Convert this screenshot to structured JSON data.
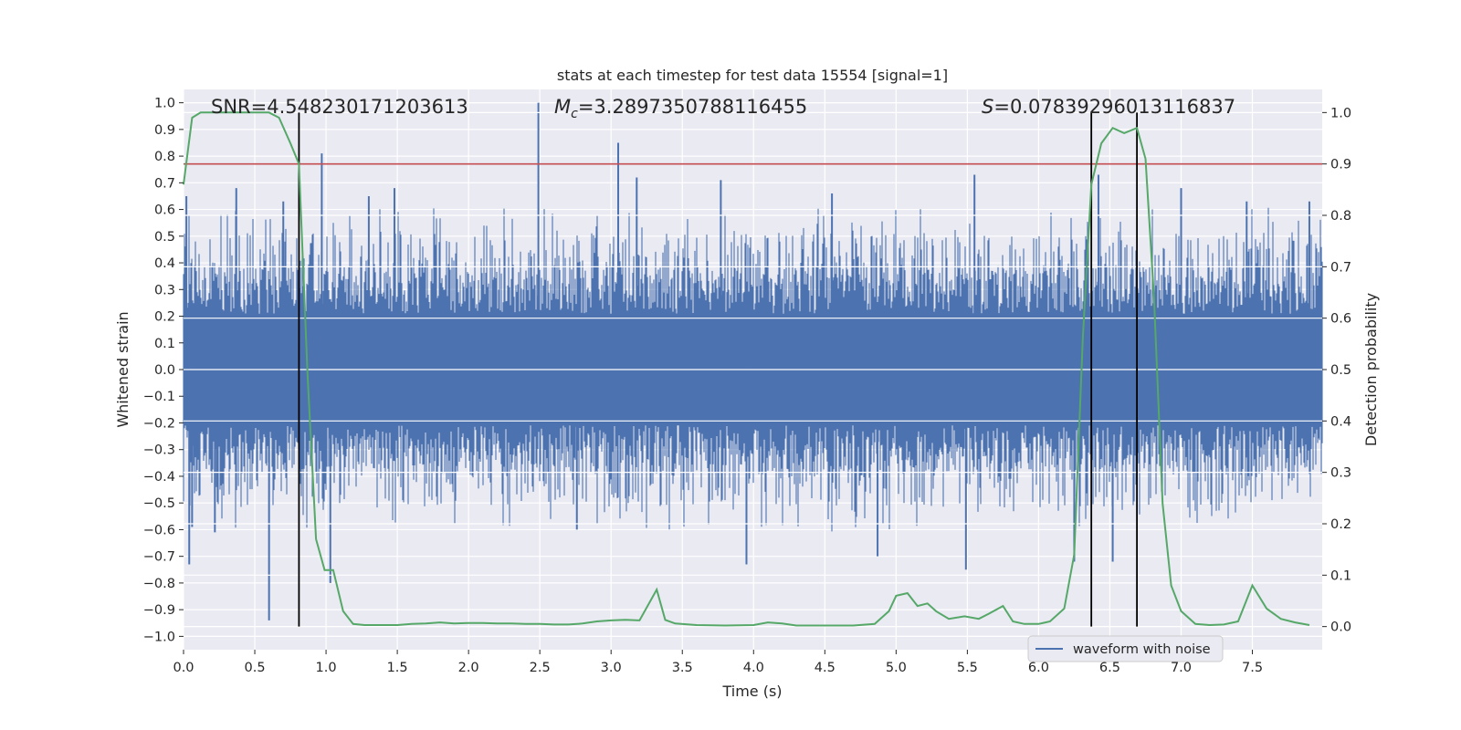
{
  "chart_data": {
    "type": "line",
    "title": "stats at each timestep for test data 15554 [signal=1]",
    "xlabel": "Time (s)",
    "ylabel_left": "Whitened strain",
    "ylabel_right": "Detection probability",
    "xlim": [
      0.0,
      7.99
    ],
    "ylim_left": [
      -1.05,
      1.05
    ],
    "ylim_right": [
      -0.045,
      1.045
    ],
    "x_ticks": [
      0.0,
      0.5,
      1.0,
      1.5,
      2.0,
      2.5,
      3.0,
      3.5,
      4.0,
      4.5,
      5.0,
      5.5,
      6.0,
      6.5,
      7.0,
      7.5
    ],
    "x_tick_labels": [
      "0.0",
      "0.5",
      "1.0",
      "1.5",
      "2.0",
      "2.5",
      "3.0",
      "3.5",
      "4.0",
      "4.5",
      "5.0",
      "5.5",
      "6.0",
      "6.5",
      "7.0",
      "7.5"
    ],
    "y_left_ticks": [
      1.0,
      0.9,
      0.8,
      0.7,
      0.6,
      0.5,
      0.4,
      0.3,
      0.2,
      0.1,
      0.0,
      -0.1,
      -0.2,
      -0.3,
      -0.4,
      -0.5,
      -0.6,
      -0.7,
      -0.8,
      -0.9,
      -1.0
    ],
    "y_left_tick_labels": [
      "1.0",
      "0.9",
      "0.8",
      "0.7",
      "0.6",
      "0.5",
      "0.4",
      "0.3",
      "0.2",
      "0.1",
      "0.0",
      "−0.1",
      "−0.2",
      "−0.3",
      "−0.4",
      "−0.5",
      "−0.6",
      "−0.7",
      "−0.8",
      "−0.9",
      "−1.0"
    ],
    "y_right_ticks": [
      1.0,
      0.9,
      0.8,
      0.7,
      0.6,
      0.5,
      0.4,
      0.3,
      0.2,
      0.1,
      0.0
    ],
    "y_right_tick_labels": [
      "1.0",
      "0.9",
      "0.8",
      "0.7",
      "0.6",
      "0.5",
      "0.4",
      "0.3",
      "0.2",
      "0.1",
      "0.0"
    ],
    "annotations": {
      "snr": "SNR=4.548230171203613",
      "mc_symbol": "M",
      "mc_subscript": "c",
      "mc_value": "=3.2897350788116455",
      "s_symbol": "S",
      "s_value": "=0.07839296013116837"
    },
    "threshold": {
      "value_right_axis": 0.9,
      "color": "#c44e52"
    },
    "detection_lines_x": [
      0.81,
      6.37,
      6.69
    ],
    "series": [
      {
        "name": "waveform with noise",
        "axis": "left",
        "color": "#4c72b0",
        "kind": "noise-envelope",
        "core_half_range": 0.38,
        "spikes": [
          {
            "x": 0.02,
            "y": 0.65
          },
          {
            "x": 0.04,
            "y": -0.73
          },
          {
            "x": 0.06,
            "y": -0.59
          },
          {
            "x": 0.22,
            "y": -0.61
          },
          {
            "x": 0.37,
            "y": 0.68
          },
          {
            "x": 0.6,
            "y": -0.94
          },
          {
            "x": 0.7,
            "y": 0.63
          },
          {
            "x": 0.97,
            "y": 0.81
          },
          {
            "x": 1.03,
            "y": -0.8
          },
          {
            "x": 1.3,
            "y": 0.65
          },
          {
            "x": 1.48,
            "y": 0.68
          },
          {
            "x": 2.49,
            "y": 1.0
          },
          {
            "x": 2.76,
            "y": -0.6
          },
          {
            "x": 3.05,
            "y": 0.85
          },
          {
            "x": 3.18,
            "y": 0.72
          },
          {
            "x": 3.77,
            "y": 0.71
          },
          {
            "x": 3.95,
            "y": -0.73
          },
          {
            "x": 4.55,
            "y": 0.66
          },
          {
            "x": 4.87,
            "y": -0.7
          },
          {
            "x": 5.49,
            "y": -0.75
          },
          {
            "x": 5.55,
            "y": 0.73
          },
          {
            "x": 6.25,
            "y": -0.72
          },
          {
            "x": 6.42,
            "y": 0.73
          },
          {
            "x": 6.52,
            "y": -0.72
          },
          {
            "x": 7.0,
            "y": 0.68
          },
          {
            "x": 7.46,
            "y": 0.63
          },
          {
            "x": 7.9,
            "y": 0.63
          }
        ]
      },
      {
        "name": "detection probability",
        "axis": "right",
        "color": "#55a868",
        "x": [
          0.0,
          0.06,
          0.12,
          0.2,
          0.3,
          0.4,
          0.5,
          0.6,
          0.67,
          0.75,
          0.81,
          0.87,
          0.93,
          0.99,
          1.05,
          1.12,
          1.19,
          1.27,
          1.4,
          1.5,
          1.6,
          1.7,
          1.8,
          1.9,
          2.0,
          2.1,
          2.2,
          2.3,
          2.4,
          2.5,
          2.6,
          2.7,
          2.8,
          2.9,
          3.0,
          3.1,
          3.2,
          3.32,
          3.38,
          3.45,
          3.6,
          3.8,
          4.0,
          4.1,
          4.2,
          4.3,
          4.5,
          4.7,
          4.85,
          4.95,
          5.0,
          5.08,
          5.15,
          5.22,
          5.28,
          5.37,
          5.48,
          5.58,
          5.65,
          5.75,
          5.82,
          5.9,
          6.0,
          6.08,
          6.18,
          6.25,
          6.31,
          6.37,
          6.44,
          6.52,
          6.6,
          6.69,
          6.75,
          6.81,
          6.87,
          6.93,
          7.0,
          7.1,
          7.2,
          7.3,
          7.4,
          7.5,
          7.6,
          7.7,
          7.8,
          7.9
        ],
        "y": [
          0.86,
          0.99,
          1.0,
          1.0,
          1.0,
          1.0,
          1.0,
          1.0,
          0.99,
          0.94,
          0.9,
          0.49,
          0.17,
          0.11,
          0.11,
          0.03,
          0.005,
          0.003,
          0.003,
          0.003,
          0.005,
          0.006,
          0.008,
          0.006,
          0.007,
          0.007,
          0.006,
          0.006,
          0.005,
          0.005,
          0.004,
          0.004,
          0.006,
          0.01,
          0.012,
          0.013,
          0.012,
          0.072,
          0.013,
          0.006,
          0.003,
          0.002,
          0.003,
          0.008,
          0.006,
          0.002,
          0.002,
          0.002,
          0.005,
          0.03,
          0.06,
          0.065,
          0.04,
          0.045,
          0.03,
          0.015,
          0.02,
          0.015,
          0.025,
          0.04,
          0.01,
          0.005,
          0.005,
          0.01,
          0.035,
          0.14,
          0.56,
          0.86,
          0.94,
          0.97,
          0.96,
          0.97,
          0.91,
          0.64,
          0.24,
          0.08,
          0.03,
          0.005,
          0.003,
          0.004,
          0.01,
          0.08,
          0.035,
          0.015,
          0.008,
          0.003
        ]
      }
    ],
    "legend": {
      "label": "waveform with noise",
      "placement": "lower-right"
    }
  }
}
